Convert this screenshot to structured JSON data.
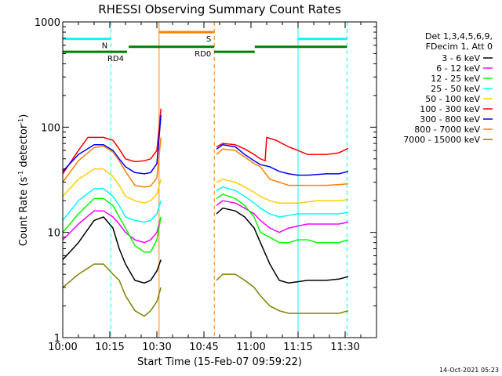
{
  "chart_data": {
    "type": "line",
    "title": "RHESSI Observing Summary Count Rates",
    "xlabel": "Start Time (15-Feb-07 09:59:22)",
    "ylabel": "Count Rate (s",
    "ylabel_sup1": "-1",
    "ylabel_mid": " detector",
    "ylabel_sup2": "-1",
    "ylabel_end": ")",
    "y_scale": "log",
    "ylim": [
      1,
      1000
    ],
    "x_range_minutes": [
      0,
      100
    ],
    "x_ticks": [
      {
        "t": 0,
        "label": "10:00"
      },
      {
        "t": 15,
        "label": "10:15"
      },
      {
        "t": 30,
        "label": "10:30"
      },
      {
        "t": 45,
        "label": "10:45"
      },
      {
        "t": 60,
        "label": "11:00"
      },
      {
        "t": 75,
        "label": "11:15"
      },
      {
        "t": 90,
        "label": "11:30"
      }
    ],
    "y_ticks": [
      {
        "v": 1,
        "label": "1"
      },
      {
        "v": 10,
        "label": "10"
      },
      {
        "v": 100,
        "label": "100"
      },
      {
        "v": 1000,
        "label": "1000"
      }
    ],
    "legend_header": [
      "Det 1,3,4,5,6,9,",
      "FDecim 1, Att 0"
    ],
    "legend_position": "right",
    "series": [
      {
        "name": "3 - 6 keV",
        "color": "#000000",
        "points": [
          [
            0,
            5.5
          ],
          [
            5,
            8
          ],
          [
            10,
            13
          ],
          [
            13,
            14
          ],
          [
            16,
            11
          ],
          [
            18,
            7
          ],
          [
            20,
            5
          ],
          [
            23,
            3.5
          ],
          [
            26,
            3.3
          ],
          [
            28,
            3.5
          ],
          [
            30,
            4.3
          ],
          [
            31.3,
            5.5
          ],
          [
            48,
            null
          ],
          [
            49,
            15
          ],
          [
            51,
            17
          ],
          [
            55,
            16
          ],
          [
            58,
            14
          ],
          [
            61,
            11
          ],
          [
            63,
            8
          ],
          [
            66,
            5
          ],
          [
            69,
            3.5
          ],
          [
            72,
            3.3
          ],
          [
            75,
            3.4
          ],
          [
            78,
            3.5
          ],
          [
            81,
            3.5
          ],
          [
            84,
            3.5
          ],
          [
            88,
            3.6
          ],
          [
            91,
            3.8
          ]
        ]
      },
      {
        "name": "6 - 12 keV",
        "color": "#ff00ff",
        "points": [
          [
            0,
            8.5
          ],
          [
            5,
            12
          ],
          [
            10,
            16
          ],
          [
            13,
            16
          ],
          [
            16,
            14
          ],
          [
            18,
            12
          ],
          [
            20,
            10
          ],
          [
            23,
            8.5
          ],
          [
            26,
            8
          ],
          [
            28,
            8.5
          ],
          [
            30,
            10
          ],
          [
            31.3,
            14
          ],
          [
            48,
            null
          ],
          [
            49,
            18
          ],
          [
            51,
            20
          ],
          [
            55,
            19
          ],
          [
            58,
            17
          ],
          [
            61,
            15
          ],
          [
            63,
            13
          ],
          [
            66,
            11
          ],
          [
            69,
            10
          ],
          [
            72,
            11
          ],
          [
            75,
            11.5
          ],
          [
            78,
            12
          ],
          [
            81,
            12
          ],
          [
            84,
            12
          ],
          [
            88,
            12
          ],
          [
            91,
            12.5
          ]
        ]
      },
      {
        "name": "12 - 25 keV",
        "color": "#00ff00",
        "points": [
          [
            0,
            10
          ],
          [
            5,
            15
          ],
          [
            10,
            21
          ],
          [
            13,
            21
          ],
          [
            16,
            18
          ],
          [
            18,
            14
          ],
          [
            20,
            11
          ],
          [
            23,
            7.5
          ],
          [
            26,
            6.5
          ],
          [
            28,
            6.5
          ],
          [
            30,
            8.5
          ],
          [
            31.3,
            14
          ],
          [
            48,
            null
          ],
          [
            49,
            21
          ],
          [
            51,
            23
          ],
          [
            55,
            21
          ],
          [
            58,
            18
          ],
          [
            61,
            14
          ],
          [
            63,
            10
          ],
          [
            66,
            9
          ],
          [
            69,
            8
          ],
          [
            72,
            8
          ],
          [
            75,
            8.5
          ],
          [
            78,
            8.5
          ],
          [
            81,
            8
          ],
          [
            84,
            8
          ],
          [
            88,
            8
          ],
          [
            91,
            8.5
          ]
        ]
      },
      {
        "name": "25 - 50 keV",
        "color": "#00ffff",
        "points": [
          [
            0,
            13
          ],
          [
            5,
            20
          ],
          [
            10,
            26
          ],
          [
            13,
            26
          ],
          [
            16,
            22
          ],
          [
            18,
            18
          ],
          [
            20,
            14
          ],
          [
            23,
            13
          ],
          [
            26,
            12.5
          ],
          [
            28,
            13
          ],
          [
            30,
            15
          ],
          [
            31.3,
            20
          ],
          [
            48,
            null
          ],
          [
            49,
            25
          ],
          [
            51,
            27
          ],
          [
            55,
            25
          ],
          [
            58,
            22
          ],
          [
            61,
            19
          ],
          [
            63,
            17
          ],
          [
            66,
            15
          ],
          [
            69,
            14
          ],
          [
            72,
            14.5
          ],
          [
            75,
            15
          ],
          [
            78,
            15
          ],
          [
            81,
            15
          ],
          [
            84,
            15
          ],
          [
            88,
            15
          ],
          [
            91,
            15.5
          ]
        ]
      },
      {
        "name": "50 - 100 keV",
        "color": "#ffd000",
        "points": [
          [
            0,
            22
          ],
          [
            5,
            32
          ],
          [
            10,
            40
          ],
          [
            13,
            40
          ],
          [
            16,
            34
          ],
          [
            18,
            28
          ],
          [
            20,
            22
          ],
          [
            23,
            20
          ],
          [
            26,
            19
          ],
          [
            28,
            20
          ],
          [
            30,
            23
          ],
          [
            31.3,
            32
          ],
          [
            48,
            null
          ],
          [
            49,
            30
          ],
          [
            51,
            32
          ],
          [
            55,
            30
          ],
          [
            58,
            27
          ],
          [
            61,
            24
          ],
          [
            63,
            22
          ],
          [
            66,
            20
          ],
          [
            69,
            19
          ],
          [
            72,
            19
          ],
          [
            75,
            19
          ],
          [
            78,
            19.5
          ],
          [
            81,
            20
          ],
          [
            84,
            20
          ],
          [
            88,
            20
          ],
          [
            91,
            20.5
          ]
        ]
      },
      {
        "name": "100 - 300 keV",
        "color": "#ff0000",
        "points": [
          [
            0,
            36
          ],
          [
            5,
            60
          ],
          [
            8,
            80
          ],
          [
            13,
            80
          ],
          [
            16,
            75
          ],
          [
            18,
            62
          ],
          [
            20,
            50
          ],
          [
            23,
            47
          ],
          [
            26,
            48
          ],
          [
            28,
            50
          ],
          [
            30,
            60
          ],
          [
            31.3,
            150
          ],
          [
            48,
            null
          ],
          [
            49,
            65
          ],
          [
            51,
            70
          ],
          [
            55,
            68
          ],
          [
            58,
            62
          ],
          [
            61,
            55
          ],
          [
            63,
            50
          ],
          [
            64.5,
            48
          ],
          [
            65,
            80
          ],
          [
            68,
            75
          ],
          [
            72,
            65
          ],
          [
            75,
            60
          ],
          [
            78,
            55
          ],
          [
            81,
            55
          ],
          [
            84,
            55
          ],
          [
            88,
            57
          ],
          [
            91,
            63
          ]
        ]
      },
      {
        "name": "300 - 800 keV",
        "color": "#0000ff",
        "points": [
          [
            0,
            38
          ],
          [
            5,
            55
          ],
          [
            10,
            68
          ],
          [
            13,
            68
          ],
          [
            16,
            60
          ],
          [
            18,
            50
          ],
          [
            20,
            42
          ],
          [
            23,
            37
          ],
          [
            26,
            36
          ],
          [
            28,
            37
          ],
          [
            30,
            45
          ],
          [
            31.3,
            130
          ],
          [
            48,
            null
          ],
          [
            49,
            62
          ],
          [
            51,
            68
          ],
          [
            55,
            65
          ],
          [
            58,
            55
          ],
          [
            61,
            48
          ],
          [
            63,
            44
          ],
          [
            66,
            42
          ],
          [
            69,
            38
          ],
          [
            72,
            36
          ],
          [
            75,
            35
          ],
          [
            78,
            35
          ],
          [
            81,
            35.5
          ],
          [
            84,
            36
          ],
          [
            88,
            36
          ],
          [
            91,
            38
          ]
        ]
      },
      {
        "name": "800 - 7000 keV",
        "color": "#ff8000",
        "points": [
          [
            0,
            30
          ],
          [
            5,
            48
          ],
          [
            10,
            64
          ],
          [
            13,
            66
          ],
          [
            16,
            58
          ],
          [
            18,
            48
          ],
          [
            20,
            38
          ],
          [
            23,
            28
          ],
          [
            26,
            27
          ],
          [
            28,
            27.5
          ],
          [
            30,
            33
          ],
          [
            31.3,
            80
          ],
          [
            48,
            null
          ],
          [
            49,
            55
          ],
          [
            51,
            62
          ],
          [
            55,
            60
          ],
          [
            58,
            52
          ],
          [
            61,
            45
          ],
          [
            63,
            42
          ],
          [
            66,
            32
          ],
          [
            69,
            30
          ],
          [
            72,
            28
          ],
          [
            75,
            28
          ],
          [
            78,
            28
          ],
          [
            81,
            28
          ],
          [
            84,
            28
          ],
          [
            88,
            28.5
          ],
          [
            91,
            29
          ]
        ]
      },
      {
        "name": "7000 - 15000 keV",
        "color": "#808000",
        "points": [
          [
            0,
            3
          ],
          [
            5,
            4
          ],
          [
            10,
            5
          ],
          [
            13,
            5
          ],
          [
            16,
            4
          ],
          [
            18,
            3.5
          ],
          [
            20,
            2.5
          ],
          [
            23,
            1.8
          ],
          [
            26,
            1.6
          ],
          [
            28,
            1.8
          ],
          [
            30,
            2.2
          ],
          [
            31.3,
            3
          ],
          [
            48,
            null
          ],
          [
            49,
            3.5
          ],
          [
            51,
            4
          ],
          [
            55,
            4
          ],
          [
            58,
            3.5
          ],
          [
            61,
            3
          ],
          [
            63,
            2.5
          ],
          [
            66,
            2
          ],
          [
            69,
            1.8
          ],
          [
            72,
            1.7
          ],
          [
            75,
            1.7
          ],
          [
            78,
            1.7
          ],
          [
            81,
            1.7
          ],
          [
            84,
            1.7
          ],
          [
            88,
            1.7
          ],
          [
            91,
            1.8
          ]
        ]
      }
    ],
    "annotations": {
      "vlines": [
        {
          "t": 0,
          "color": "#00ffff",
          "style": "solid"
        },
        {
          "t": 15.3,
          "color": "#00ffff",
          "style": "dashed"
        },
        {
          "t": 30.7,
          "color": "#ff8000",
          "style": "solid"
        },
        {
          "t": 48.3,
          "color": "#ff8000",
          "style": "dashed"
        },
        {
          "t": 75,
          "color": "#00ffff",
          "style": "solid"
        },
        {
          "t": 90.6,
          "color": "#00ffff",
          "style": "dashed"
        }
      ],
      "bars": [
        {
          "t0": 0,
          "t1": 15.3,
          "level": 690,
          "color": "#00ffff",
          "label": "N"
        },
        {
          "t0": 75,
          "t1": 90.6,
          "level": 690,
          "color": "#00ffff",
          "label": ""
        },
        {
          "t0": 30.7,
          "t1": 48.3,
          "level": 800,
          "color": "#ff8000",
          "label": "S"
        },
        {
          "t0": 0,
          "t1": 20.5,
          "level": 520,
          "color": "#008000",
          "label": "RD4"
        },
        {
          "t0": 21,
          "t1": 48.3,
          "level": 580,
          "color": "#008000",
          "label": "RD0"
        },
        {
          "t0": 48.3,
          "t1": 61.2,
          "level": 520,
          "color": "#008000",
          "label": ""
        },
        {
          "t0": 61.2,
          "t1": 90.6,
          "level": 580,
          "color": "#008000",
          "label": ""
        }
      ]
    },
    "footer": "14-Oct-2021 05:23"
  }
}
